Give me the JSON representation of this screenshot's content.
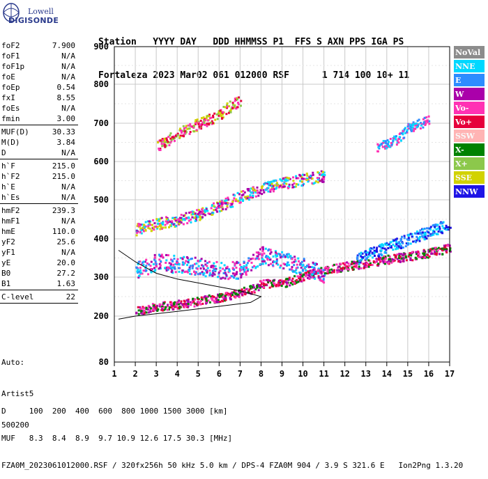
{
  "logo": {
    "line1": "Lowell",
    "line2": "DIGISONDE"
  },
  "header": {
    "line1": "Station   YYYY DAY   DDD HHMMSS P1  FFS S AXN PPS IGA PS",
    "line2": "Fortaleza 2023 Mar02 061 012000 RSF      1 714 100 10+ 11"
  },
  "params": [
    {
      "label": "foF2",
      "value": "7.900"
    },
    {
      "label": "foF1",
      "value": "N/A"
    },
    {
      "label": "foF1p",
      "value": "N/A"
    },
    {
      "label": "foE",
      "value": "N/A"
    },
    {
      "label": "foEp",
      "value": "0.54"
    },
    {
      "label": "fxI",
      "value": "8.55"
    },
    {
      "label": "foEs",
      "value": "N/A"
    },
    {
      "label": "fmin",
      "value": "3.00"
    },
    {
      "sep": true
    },
    {
      "label": "MUF(D)",
      "value": "30.33"
    },
    {
      "label": "M(D)",
      "value": "3.84"
    },
    {
      "label": "D",
      "value": "N/A"
    },
    {
      "sep": true
    },
    {
      "label": "h`F",
      "value": "215.0"
    },
    {
      "label": "h`F2",
      "value": "215.0"
    },
    {
      "label": "h`E",
      "value": "N/A"
    },
    {
      "label": "h`Es",
      "value": "N/A"
    },
    {
      "sep": true
    },
    {
      "label": "hmF2",
      "value": "239.3"
    },
    {
      "label": "hmF1",
      "value": "N/A"
    },
    {
      "label": "hmE",
      "value": "110.0"
    },
    {
      "label": "yF2",
      "value": "25.6"
    },
    {
      "label": "yF1",
      "value": "N/A"
    },
    {
      "label": "yE",
      "value": "20.0"
    },
    {
      "label": "B0",
      "value": "27.2"
    },
    {
      "label": "B1",
      "value": "1.63"
    },
    {
      "sep": true
    },
    {
      "label": "C-level",
      "value": "22"
    },
    {
      "sep": true
    }
  ],
  "auto": {
    "line1": "Auto:",
    "line2": "Artist5",
    "line3": "500200"
  },
  "footer": {
    "line1": "D     100  200  400  600  800 1000 1500 3000 [km]",
    "line2": "MUF   8.3  8.4  8.9  9.7 10.9 12.6 17.5 30.3 [MHz]",
    "line3": "FZA0M_2023061012000.RSF / 320fx256h 50 kHz 5.0 km / DPS-4 FZA0M 904 / 3.9 S 321.6 E   Ion2Png 1.3.20"
  },
  "chart_data": {
    "type": "scatter",
    "xlim": [
      1,
      17
    ],
    "ylim": [
      80,
      900
    ],
    "x_ticks": [
      1,
      2,
      3,
      4,
      5,
      6,
      7,
      8,
      9,
      10,
      11,
      12,
      13,
      14,
      15,
      16,
      17
    ],
    "y_ticks": [
      80,
      200,
      300,
      400,
      500,
      600,
      700,
      800,
      900
    ],
    "grid": true,
    "legend_placement": "right",
    "legend": [
      {
        "name": "NoVal",
        "color": "#8c8c8c"
      },
      {
        "name": "NNE",
        "color": "#00d8ff"
      },
      {
        "name": "E",
        "color": "#2d8cff"
      },
      {
        "name": "W",
        "color": "#aa00aa"
      },
      {
        "name": "Vo-",
        "color": "#ff32b4"
      },
      {
        "name": "Vo+",
        "color": "#e6003c"
      },
      {
        "name": "SSW",
        "color": "#ffb4b4"
      },
      {
        "name": "X-",
        "color": "#008200"
      },
      {
        "name": "X+",
        "color": "#8cc84b"
      },
      {
        "name": "SSE",
        "color": "#d2d200"
      },
      {
        "name": "NNW",
        "color": "#1e14e6"
      }
    ],
    "traces": [
      {
        "name": "O-trace F-layer",
        "points": [
          [
            2.0,
            215
          ],
          [
            3.0,
            225
          ],
          [
            4.0,
            232
          ],
          [
            5.0,
            240
          ],
          [
            6.0,
            250
          ],
          [
            7.0,
            262
          ],
          [
            7.6,
            272
          ],
          [
            8.0,
            285
          ],
          [
            9.0,
            285
          ],
          [
            10.0,
            305
          ],
          [
            11.0,
            320
          ],
          [
            12.0,
            330
          ],
          [
            13.0,
            338
          ],
          [
            14.0,
            348
          ],
          [
            15.0,
            356
          ],
          [
            16.0,
            365
          ],
          [
            17.0,
            378
          ]
        ],
        "spread": 22,
        "colors": [
          "#e6003c",
          "#ff32b4",
          "#aa00aa",
          "#008200"
        ]
      },
      {
        "name": "X-trace upper",
        "points": [
          [
            12.5,
            345
          ],
          [
            13.0,
            360
          ],
          [
            14.0,
            380
          ],
          [
            15.0,
            400
          ],
          [
            16.0,
            420
          ],
          [
            17.0,
            440
          ]
        ],
        "spread": 30,
        "colors": [
          "#1e14e6",
          "#2d8cff",
          "#00d8ff"
        ]
      },
      {
        "name": "Spread F cloud",
        "points": [
          [
            2.0,
            320
          ],
          [
            3.0,
            340
          ],
          [
            4.0,
            335
          ],
          [
            5.0,
            330
          ],
          [
            6.0,
            320
          ],
          [
            7.0,
            320
          ],
          [
            8.0,
            360
          ],
          [
            9.0,
            345
          ],
          [
            10.0,
            330
          ],
          [
            11.0,
            310
          ]
        ],
        "spread": 45,
        "colors": [
          "#aa00aa",
          "#00d8ff",
          "#2d8cff",
          "#ff32b4"
        ]
      },
      {
        "name": "Second hop",
        "points": [
          [
            2.0,
            425
          ],
          [
            3.0,
            440
          ],
          [
            4.0,
            450
          ],
          [
            5.0,
            465
          ],
          [
            6.0,
            485
          ],
          [
            7.0,
            510
          ],
          [
            8.0,
            530
          ],
          [
            9.0,
            545
          ],
          [
            10.0,
            555
          ],
          [
            11.0,
            565
          ]
        ],
        "spread": 30,
        "colors": [
          "#aa00aa",
          "#ff32b4",
          "#d2d200",
          "#00d8ff"
        ]
      },
      {
        "name": "Third hop",
        "points": [
          [
            3.0,
            640
          ],
          [
            4.0,
            675
          ],
          [
            5.0,
            700
          ],
          [
            6.0,
            725
          ],
          [
            6.5,
            745
          ],
          [
            7.0,
            760
          ]
        ],
        "spread": 30,
        "colors": [
          "#ff32b4",
          "#e6003c",
          "#d2d200",
          "#8cc84b"
        ]
      },
      {
        "name": "High echoes",
        "points": [
          [
            13.5,
            640
          ],
          [
            14.5,
            660
          ],
          [
            15.0,
            690
          ],
          [
            16.0,
            710
          ]
        ],
        "spread": 25,
        "colors": [
          "#2d8cff",
          "#ff32b4",
          "#00d8ff"
        ]
      }
    ],
    "profile_line": [
      [
        1.2,
        370
      ],
      [
        2.0,
        340
      ],
      [
        3.0,
        310
      ],
      [
        4.0,
        295
      ],
      [
        5.0,
        285
      ],
      [
        6.0,
        275
      ],
      [
        7.0,
        265
      ],
      [
        8.0,
        250
      ],
      [
        7.5,
        235
      ],
      [
        6.0,
        225
      ],
      [
        4.0,
        212
      ],
      [
        2.0,
        200
      ],
      [
        1.2,
        192
      ]
    ]
  }
}
